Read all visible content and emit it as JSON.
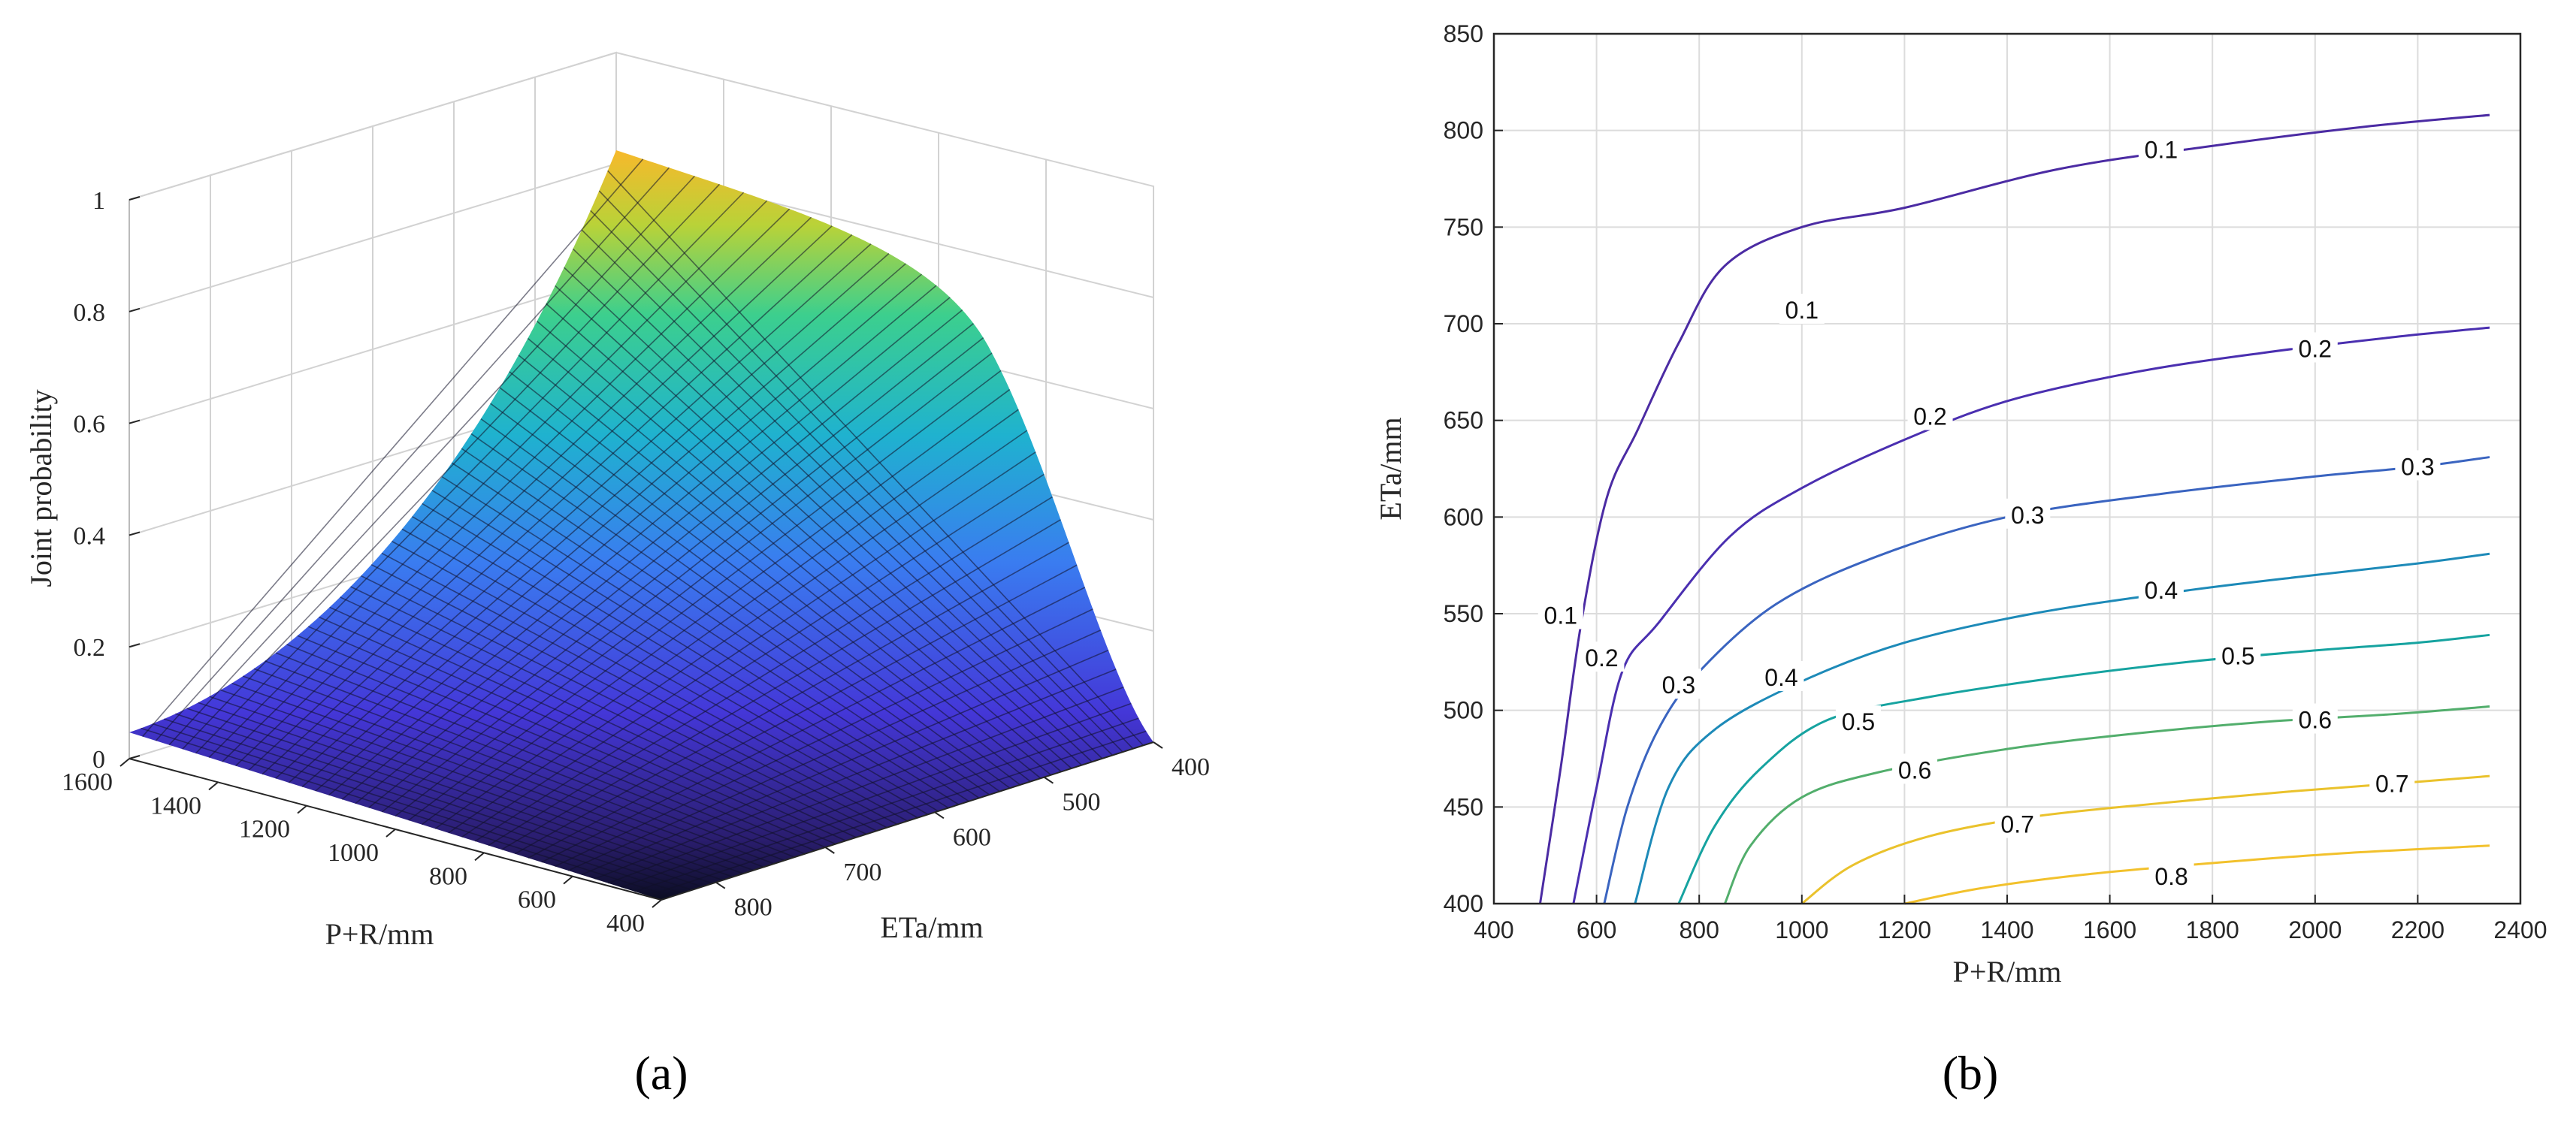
{
  "panels": {
    "a": {
      "label": "(a)"
    },
    "b": {
      "label": "(b)"
    }
  },
  "chart_data": [
    {
      "type": "surface",
      "panel": "(a)",
      "zlabel": "Joint probability",
      "xlabel": "P+R/mm",
      "ylabel": "ETa/mm",
      "x_ticks": [
        "1600",
        "1400",
        "1200",
        "1000",
        "800",
        "600",
        "400"
      ],
      "y_ticks": [
        "400",
        "500",
        "600",
        "700",
        "800"
      ],
      "z_ticks": [
        "0",
        "0.2",
        "0.4",
        "0.6",
        "0.8",
        "1"
      ],
      "xlim": [
        400,
        1600
      ],
      "ylim": [
        400,
        850
      ],
      "zlim": [
        0,
        1
      ],
      "grid": true,
      "colormap": [
        "#3e26a8",
        "#4a4dfc",
        "#1ca9e0",
        "#26c8a0",
        "#98d048",
        "#f9b428"
      ],
      "surface_samples": [
        {
          "x": 1600,
          "y": 400,
          "z": 1.0
        },
        {
          "x": 1600,
          "y": 850,
          "z": 0.07
        },
        {
          "x": 400,
          "y": 400,
          "z": 0.05
        },
        {
          "x": 400,
          "y": 850,
          "z": 0.0
        }
      ]
    },
    {
      "type": "contour",
      "panel": "(b)",
      "xlabel": "P+R/mm",
      "ylabel": "ETa/mm",
      "xlim": [
        400,
        2400
      ],
      "ylim": [
        400,
        850
      ],
      "x_ticks": [
        "400",
        "600",
        "800",
        "1000",
        "1200",
        "1400",
        "1600",
        "1800",
        "2000",
        "2200",
        "2400"
      ],
      "y_ticks": [
        "400",
        "450",
        "500",
        "550",
        "600",
        "650",
        "700",
        "750",
        "800",
        "850"
      ],
      "grid": true,
      "levels": [
        {
          "level": "0.1",
          "color": "#4b2ba3",
          "points": [
            [
              490,
              400
            ],
            [
              530,
              470
            ],
            [
              570,
              545
            ],
            [
              620,
              610
            ],
            [
              680,
              645
            ],
            [
              760,
              690
            ],
            [
              850,
              730
            ],
            [
              1000,
              750
            ],
            [
              1200,
              760
            ],
            [
              1500,
              780
            ],
            [
              1800,
              792
            ],
            [
              2100,
              802
            ],
            [
              2340,
              808
            ]
          ]
        },
        {
          "level": "0.2",
          "color": "#4a2fb0",
          "points": [
            [
              555,
              400
            ],
            [
              600,
              460
            ],
            [
              650,
              520
            ],
            [
              720,
              545
            ],
            [
              860,
              590
            ],
            [
              1000,
              615
            ],
            [
              1200,
              640
            ],
            [
              1400,
              660
            ],
            [
              1650,
              675
            ],
            [
              1900,
              685
            ],
            [
              2150,
              693
            ],
            [
              2340,
              698
            ]
          ]
        },
        {
          "level": "0.3",
          "color": "#3a64c0",
          "points": [
            [
              615,
              400
            ],
            [
              660,
              450
            ],
            [
              720,
              490
            ],
            [
              800,
              520
            ],
            [
              950,
              555
            ],
            [
              1150,
              580
            ],
            [
              1400,
              600
            ],
            [
              1700,
              612
            ],
            [
              2000,
              621
            ],
            [
              2200,
              626
            ],
            [
              2340,
              631
            ]
          ]
        },
        {
          "level": "0.4",
          "color": "#1d8ab8",
          "points": [
            [
              675,
              400
            ],
            [
              740,
              460
            ],
            [
              830,
              490
            ],
            [
              1000,
              515
            ],
            [
              1200,
              535
            ],
            [
              1450,
              550
            ],
            [
              1750,
              562
            ],
            [
              2000,
              570
            ],
            [
              2200,
              576
            ],
            [
              2340,
              581
            ]
          ]
        },
        {
          "level": "0.5",
          "color": "#16a3a0",
          "points": [
            [
              760,
              400
            ],
            [
              830,
              440
            ],
            [
              920,
              470
            ],
            [
              1050,
              495
            ],
            [
              1250,
              507
            ],
            [
              1500,
              517
            ],
            [
              1750,
              525
            ],
            [
              2000,
              531
            ],
            [
              2200,
              535
            ],
            [
              2340,
              539
            ]
          ]
        },
        {
          "level": "0.6",
          "color": "#52ae6c",
          "points": [
            [
              850,
              400
            ],
            [
              900,
              430
            ],
            [
              1000,
              455
            ],
            [
              1150,
              468
            ],
            [
              1400,
              480
            ],
            [
              1650,
              488
            ],
            [
              1900,
              494
            ],
            [
              2150,
              498
            ],
            [
              2340,
              502
            ]
          ]
        },
        {
          "level": "0.7",
          "color": "#eac22c",
          "points": [
            [
              1000,
              400
            ],
            [
              1100,
              420
            ],
            [
              1250,
              435
            ],
            [
              1450,
              445
            ],
            [
              1700,
              452
            ],
            [
              1950,
              458
            ],
            [
              2150,
              462
            ],
            [
              2340,
              466
            ]
          ]
        },
        {
          "level": "0.8",
          "color": "#f2c12c",
          "points": [
            [
              1200,
              400
            ],
            [
              1350,
              408
            ],
            [
              1550,
              415
            ],
            [
              1800,
              421
            ],
            [
              2050,
              426
            ],
            [
              2340,
              430
            ]
          ]
        }
      ],
      "contour_labels": [
        {
          "text": "0.1",
          "x": 1700,
          "y": 790
        },
        {
          "text": "0.1",
          "x": 1000,
          "y": 707
        },
        {
          "text": "0.1",
          "x": 530,
          "y": 549
        },
        {
          "text": "0.2",
          "x": 2000,
          "y": 687
        },
        {
          "text": "0.2",
          "x": 1250,
          "y": 652
        },
        {
          "text": "0.2",
          "x": 610,
          "y": 527
        },
        {
          "text": "0.3",
          "x": 2200,
          "y": 626
        },
        {
          "text": "0.3",
          "x": 1440,
          "y": 601
        },
        {
          "text": "0.3",
          "x": 760,
          "y": 513
        },
        {
          "text": "0.4",
          "x": 1700,
          "y": 562
        },
        {
          "text": "0.4",
          "x": 960,
          "y": 517
        },
        {
          "text": "0.5",
          "x": 1850,
          "y": 528
        },
        {
          "text": "0.5",
          "x": 1110,
          "y": 494
        },
        {
          "text": "0.6",
          "x": 2000,
          "y": 495
        },
        {
          "text": "0.6",
          "x": 1220,
          "y": 469
        },
        {
          "text": "0.7",
          "x": 2150,
          "y": 462
        },
        {
          "text": "0.7",
          "x": 1420,
          "y": 441
        },
        {
          "text": "0.8",
          "x": 1720,
          "y": 414
        }
      ]
    }
  ]
}
